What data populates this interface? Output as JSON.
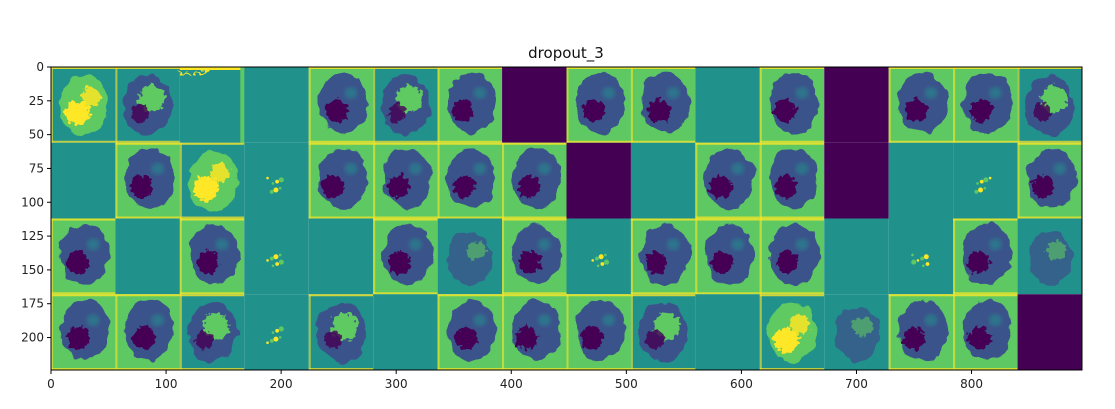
{
  "chart_data": {
    "type": "heatmap",
    "title": "dropout_3",
    "xlabel": "",
    "ylabel": "",
    "xlim": [
      0,
      896
    ],
    "ylim": [
      224,
      0
    ],
    "x_ticks": [
      0,
      100,
      200,
      300,
      400,
      500,
      600,
      700,
      800
    ],
    "y_ticks": [
      0,
      25,
      50,
      75,
      100,
      125,
      150,
      175,
      200
    ],
    "grid": false,
    "colormap": [
      "#440154",
      "#3b528b",
      "#21918c",
      "#5ec962",
      "#fde725"
    ],
    "tile_size": 56,
    "grid_rows": 4,
    "grid_cols": 16,
    "tiles": [
      [
        "blob-bright",
        "blob-mixed",
        "edge",
        "flat",
        "blob-dark",
        "blob-mixed",
        "blob-dark",
        "dead",
        "blob-dark",
        "blob-dark",
        "flat",
        "blob-dark",
        "dead",
        "blob-dark",
        "blob-dark",
        "blob-mixed"
      ],
      [
        "flat",
        "blob-dark",
        "blob-bright",
        "speck",
        "blob-dark",
        "blob-dark",
        "blob-dark",
        "blob-dark",
        "dead",
        "flat",
        "blob-dark",
        "blob-dark",
        "dead",
        "flat",
        "speck",
        "blob-dark"
      ],
      [
        "blob-dark",
        "flat",
        "blob-dark",
        "speck",
        "flat",
        "blob-dark",
        "texture",
        "blob-dark",
        "speck",
        "blob-dark",
        "blob-dark",
        "blob-dark",
        "flat",
        "speck",
        "blob-dark",
        "texture"
      ],
      [
        "blob-dark",
        "blob-dark",
        "blob-mixed",
        "speck",
        "blob-mixed",
        "flat",
        "blob-dark",
        "blob-dark",
        "blob-dark",
        "blob-mixed",
        "flat",
        "blob-bright",
        "texture",
        "blob-dark",
        "blob-dark",
        "dead"
      ]
    ]
  }
}
